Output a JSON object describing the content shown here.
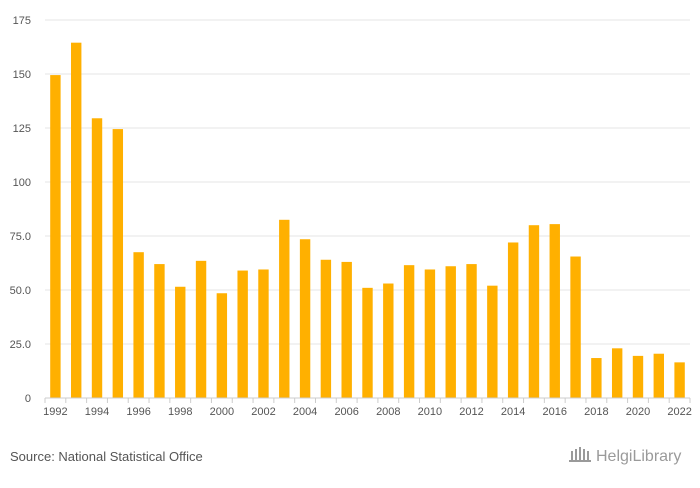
{
  "chart_data": {
    "type": "bar",
    "categories": [
      "1992",
      "1993",
      "1994",
      "1995",
      "1996",
      "1997",
      "1998",
      "1999",
      "2000",
      "2001",
      "2002",
      "2003",
      "2004",
      "2005",
      "2006",
      "2007",
      "2008",
      "2009",
      "2010",
      "2011",
      "2012",
      "2013",
      "2014",
      "2015",
      "2016",
      "2017",
      "2018",
      "2019",
      "2020",
      "2021",
      "2022"
    ],
    "values": [
      149.5,
      164.5,
      129.5,
      124.5,
      67.5,
      62,
      51.5,
      63.5,
      48.5,
      59,
      59.5,
      82.5,
      73.5,
      64,
      63,
      51,
      53,
      61.5,
      59.5,
      61,
      62,
      52,
      72,
      80,
      80.5,
      65.5,
      18.5,
      23,
      19.5,
      20.5,
      16.5
    ],
    "x_tick_labels": [
      "1992",
      "1994",
      "1996",
      "1998",
      "2000",
      "2002",
      "2004",
      "2006",
      "2008",
      "2010",
      "2012",
      "2014",
      "2016",
      "2018",
      "2020",
      "2022"
    ],
    "y_tick_labels": [
      "0",
      "25.0",
      "50.0",
      "75.0",
      "100",
      "125",
      "150",
      "175"
    ],
    "y_ticks": [
      0,
      25,
      50,
      75,
      100,
      125,
      150,
      175
    ],
    "ylim": [
      0,
      175
    ],
    "grid": true,
    "legend": "none",
    "bar_color": "#FFB000",
    "title": "",
    "xlabel": "",
    "ylabel": ""
  },
  "footer": {
    "source_text": "Source: National Statistical Office",
    "logo_text": "HelgiLibrary",
    "logo_icon": "helgi-building-icon"
  }
}
